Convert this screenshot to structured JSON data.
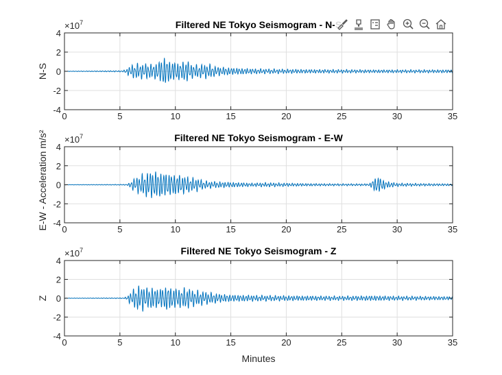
{
  "figure": {
    "super_ylabel": "E-W  -  Acceleration  m/s²",
    "xlabel": "Minutes",
    "exponent_base": "×10",
    "exponent_power": "7"
  },
  "toolbar": [
    {
      "name": "brush-icon",
      "icon": "brush"
    },
    {
      "name": "data-tips-icon",
      "icon": "datatip"
    },
    {
      "name": "legend-icon",
      "icon": "legend"
    },
    {
      "name": "pan-icon",
      "icon": "hand"
    },
    {
      "name": "zoom-in-icon",
      "icon": "zoomin"
    },
    {
      "name": "zoom-out-icon",
      "icon": "zoomout"
    },
    {
      "name": "home-icon",
      "icon": "home"
    }
  ],
  "chart_data": [
    {
      "type": "line",
      "title": "Filtered NE Tokyo Seismogram - N-S",
      "ylabel": "N-S",
      "xlabel": "",
      "xlim": [
        0,
        35
      ],
      "ylim": [
        -4,
        4
      ],
      "xticks": [
        0,
        5,
        10,
        15,
        20,
        25,
        30,
        35
      ],
      "yticks": [
        -4,
        -2,
        0,
        2,
        4
      ],
      "y_multiplier": "×10^7",
      "grid": true,
      "color": "#0072BD",
      "envelope": {
        "x": [
          0,
          5.3,
          5.6,
          6.0,
          6.5,
          7.0,
          7.5,
          8.0,
          8.5,
          9.0,
          9.5,
          10.0,
          10.5,
          11.0,
          11.5,
          12.0,
          12.5,
          13.0,
          13.5,
          14.0,
          15.0,
          16.0,
          17.0,
          18.0,
          20.0,
          22.0,
          25.0,
          28.0,
          32.0,
          35.0
        ],
        "amp": [
          0.02,
          0.08,
          0.3,
          0.7,
          0.9,
          0.85,
          0.9,
          0.8,
          1.1,
          1.7,
          1.2,
          1.05,
          1.0,
          1.3,
          0.8,
          0.75,
          0.8,
          0.85,
          0.6,
          0.5,
          0.4,
          0.35,
          0.3,
          0.28,
          0.25,
          0.22,
          0.2,
          0.18,
          0.18,
          0.18
        ]
      }
    },
    {
      "type": "line",
      "title": "Filtered NE Tokyo Seismogram - E-W",
      "ylabel": "",
      "xlabel": "",
      "xlim": [
        0,
        35
      ],
      "ylim": [
        -4,
        4
      ],
      "xticks": [
        0,
        5,
        10,
        15,
        20,
        25,
        30,
        35
      ],
      "yticks": [
        -4,
        -2,
        0,
        2,
        4
      ],
      "y_multiplier": "×10^7",
      "grid": true,
      "color": "#0072BD",
      "envelope": {
        "x": [
          0,
          5.5,
          5.8,
          6.0,
          6.5,
          7.0,
          7.5,
          8.0,
          8.5,
          9.0,
          9.5,
          10.0,
          10.5,
          11.0,
          11.5,
          12.0,
          12.5,
          13.0,
          14.0,
          15.0,
          16.0,
          17.0,
          18.0,
          20.0,
          22.0,
          25.0,
          27.5,
          27.8,
          28.2,
          28.6,
          29.0,
          30.0,
          32.0,
          35.0
        ],
        "amp": [
          0.02,
          0.05,
          0.15,
          0.5,
          0.9,
          1.2,
          1.5,
          1.6,
          1.5,
          1.4,
          1.3,
          1.2,
          1.1,
          1.0,
          0.8,
          0.75,
          0.5,
          0.4,
          0.35,
          0.3,
          0.25,
          0.2,
          0.25,
          0.2,
          0.15,
          0.12,
          0.12,
          0.6,
          1.0,
          0.7,
          0.4,
          0.2,
          0.15,
          0.12
        ]
      }
    },
    {
      "type": "line",
      "title": "Filtered NE Tokyo Seismogram - Z",
      "ylabel": "Z",
      "xlabel": "Minutes",
      "xlim": [
        0,
        35
      ],
      "ylim": [
        -4,
        4
      ],
      "xticks": [
        0,
        5,
        10,
        15,
        20,
        25,
        30,
        35
      ],
      "yticks": [
        -4,
        -2,
        0,
        2,
        4
      ],
      "y_multiplier": "×10^7",
      "grid": true,
      "color": "#0072BD",
      "envelope": {
        "x": [
          0,
          5.4,
          5.7,
          6.0,
          6.5,
          7.0,
          7.5,
          8.0,
          8.5,
          9.0,
          9.3,
          9.6,
          10.0,
          10.5,
          11.0,
          11.5,
          12.0,
          12.5,
          13.0,
          14.0,
          15.0,
          17.0,
          20.0,
          22.0,
          25.0,
          28.0,
          28.5,
          30.0,
          35.0
        ],
        "amp": [
          0.02,
          0.05,
          0.3,
          0.8,
          1.4,
          1.5,
          1.2,
          1.3,
          1.1,
          1.3,
          1.6,
          1.2,
          1.2,
          1.1,
          1.3,
          1.0,
          0.9,
          0.8,
          0.7,
          0.5,
          0.4,
          0.35,
          0.3,
          0.28,
          0.25,
          0.3,
          0.28,
          0.25,
          0.2
        ]
      }
    }
  ]
}
